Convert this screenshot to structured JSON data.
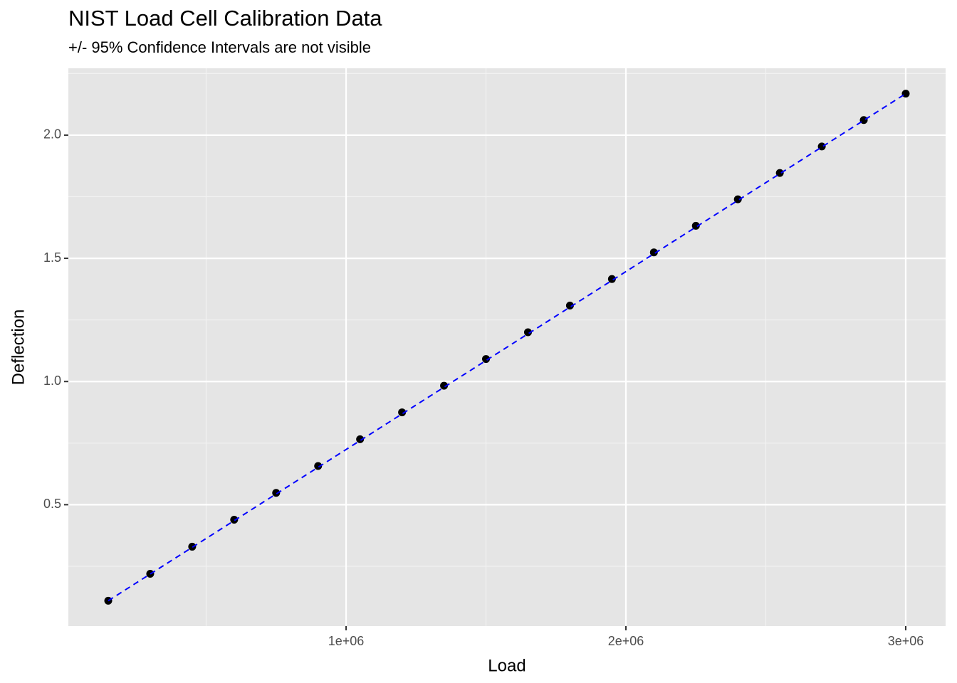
{
  "chart_data": {
    "type": "scatter",
    "title": "NIST Load Cell Calibration Data",
    "subtitle": "+/- 95% Confidence Intervals are not visible",
    "x_label": "Load",
    "y_label": "Deflection",
    "x": [
      150000,
      300000,
      450000,
      600000,
      750000,
      900000,
      1050000,
      1200000,
      1350000,
      1500000,
      1650000,
      1800000,
      1950000,
      2100000,
      2250000,
      2400000,
      2550000,
      2700000,
      2850000,
      3000000
    ],
    "values": [
      0.11019,
      0.21956,
      0.32949,
      0.43899,
      0.54803,
      0.65694,
      0.76562,
      0.87487,
      0.98292,
      1.09146,
      1.20001,
      1.30822,
      1.41599,
      1.52399,
      1.63194,
      1.73947,
      1.84646,
      1.95392,
      2.06128,
      2.16844
    ],
    "color": "#000000",
    "fit": {
      "color": "#0000ff",
      "x": [
        150000,
        3000000
      ],
      "values": [
        0.1102,
        2.1684
      ]
    },
    "xlim": [
      7500,
      3142500
    ],
    "ylim": [
      0.0073,
      2.2713
    ],
    "xticks": [
      {
        "value": 1000000,
        "label": "1e+06"
      },
      {
        "value": 2000000,
        "label": "2e+06"
      },
      {
        "value": 3000000,
        "label": "3e+06"
      }
    ],
    "yticks": [
      {
        "value": 0.5,
        "label": "0.5"
      },
      {
        "value": 1,
        "label": "1.0"
      },
      {
        "value": 1.5,
        "label": "1.5"
      },
      {
        "value": 2,
        "label": "2.0"
      }
    ],
    "x_minor_ticks": [
      500000,
      1500000,
      2500000
    ],
    "y_minor_ticks": [
      0.25,
      0.75,
      1.25,
      1.75,
      2.25
    ],
    "grid": true
  }
}
